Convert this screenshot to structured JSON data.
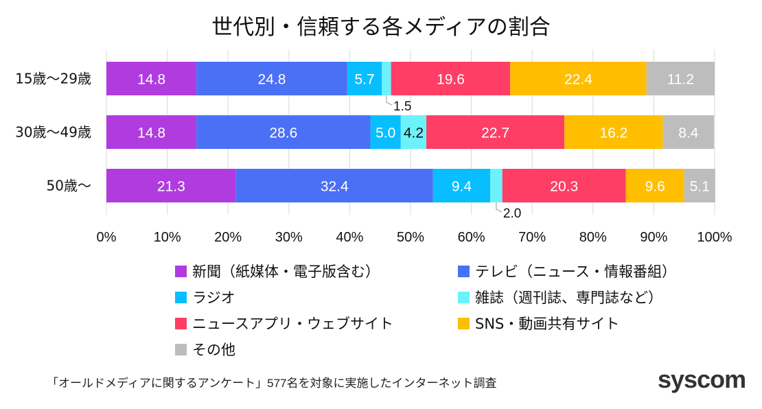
{
  "chart_data": {
    "type": "bar",
    "orientation": "horizontal",
    "stacked": true,
    "title": "世代別・信頼する各メディアの割合",
    "categories": [
      "15歳〜29歳",
      "30歳〜49歳",
      "50歳〜"
    ],
    "series": [
      {
        "name": "新聞（紙媒体・電子版含む）",
        "color": "#b03ce0",
        "values": [
          14.8,
          14.8,
          21.3
        ]
      },
      {
        "name": "テレビ（ニュース・情報番組）",
        "color": "#4a70f5",
        "values": [
          24.8,
          28.6,
          32.4
        ]
      },
      {
        "name": "ラジオ",
        "color": "#08beff",
        "values": [
          5.7,
          5.0,
          9.4
        ]
      },
      {
        "name": "雑誌（週刊誌、専門誌など）",
        "color": "#6cf2fb",
        "values": [
          1.5,
          4.2,
          2.0
        ]
      },
      {
        "name": "ニュースアプリ・ウェブサイト",
        "color": "#ff3e66",
        "values": [
          19.6,
          22.7,
          20.3
        ]
      },
      {
        "name": "SNS・動画共有サイト",
        "color": "#ffbe00",
        "values": [
          22.4,
          16.2,
          9.6
        ]
      },
      {
        "name": "その他",
        "color": "#bdbdbd",
        "values": [
          11.2,
          8.4,
          5.1
        ]
      }
    ],
    "xlim": [
      0,
      100
    ],
    "xticks": [
      "0%",
      "10%",
      "20%",
      "30%",
      "40%",
      "50%",
      "60%",
      "70%",
      "80%",
      "90%",
      "100%"
    ],
    "grid": true,
    "legend_position": "bottom"
  },
  "footer": {
    "note": "「オールドメディアに関するアンケート」577名を対象に実施したインターネット調査",
    "logo": "syscom"
  }
}
